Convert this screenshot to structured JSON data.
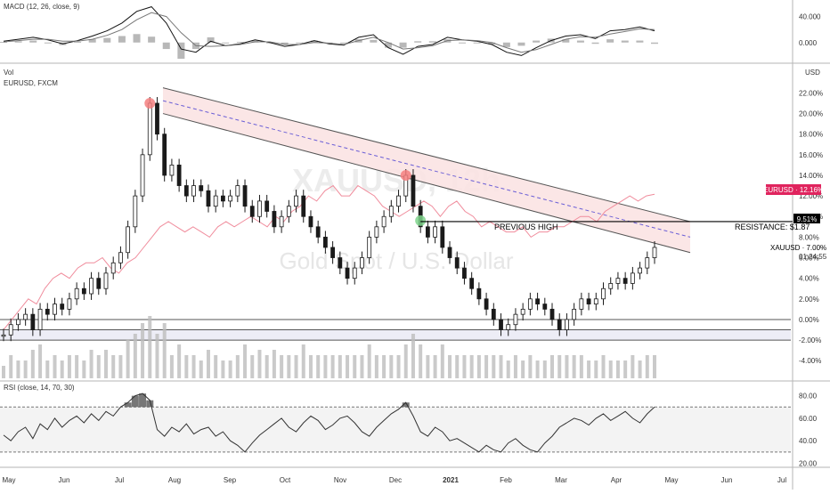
{
  "panes": {
    "macd_label": "MACD (12, 26, close, 9)",
    "vol_label": "Vol",
    "symbol_label": "EURUSD, FXCM",
    "rsi_label": "RSI (close, 14, 70, 30)",
    "currency_label": "USD"
  },
  "watermark": {
    "symbol": "XAUUSD, 12h",
    "name": "Gold Spot / U.S. Dollar"
  },
  "annotations": {
    "previous_high": "PREVIOUS HIGH",
    "resistance": "RESISTANCE: $1.87",
    "resistance_pct": "9.51%"
  },
  "badges": {
    "eurusd": "EURUSD · 12.16%",
    "xauusd": "XAUUSD · 7.00%",
    "countdown": "01:24:55"
  },
  "colors": {
    "gold_candles": "#1a1a1a",
    "eurusd_line": "#f08c9c",
    "channel_fill": "#fbe3e3",
    "channel_border": "#555555",
    "channel_mid": "#6b5fd6",
    "eurusd_badge": "#e0245e",
    "highlight_red": "#f57f7f",
    "highlight_green": "#7fd38c",
    "resistance_line": "#000000"
  },
  "time_axis": [
    "May",
    "Jun",
    "Jul",
    "Aug",
    "Sep",
    "Oct",
    "Nov",
    "Dec",
    "2021",
    "Feb",
    "Mar",
    "Apr",
    "May",
    "Jun",
    "Jul"
  ],
  "chart_data": [
    {
      "type": "line",
      "title": "MACD (12, 26, close, 9)",
      "y_ticks": [
        "40.000",
        "0.000"
      ],
      "ylim": [
        -25,
        60
      ],
      "series": [
        {
          "name": "MACD",
          "values": [
            2,
            5,
            8,
            4,
            -2,
            3,
            10,
            18,
            30,
            48,
            55,
            30,
            -10,
            -15,
            2,
            -5,
            -2,
            4,
            0,
            -6,
            -3,
            3,
            -2,
            -4,
            8,
            12,
            -8,
            -18,
            -6,
            -3,
            8,
            4,
            2,
            -3,
            -15,
            -20,
            -8,
            3,
            10,
            12,
            6,
            18,
            20,
            24,
            18
          ]
        },
        {
          "name": "Signal",
          "values": [
            1,
            3,
            5,
            5,
            2,
            2,
            5,
            11,
            20,
            35,
            46,
            40,
            15,
            -5,
            -6,
            -5,
            -3,
            1,
            1,
            -3,
            -3,
            0,
            -1,
            -3,
            3,
            8,
            0,
            -10,
            -8,
            -5,
            3,
            4,
            3,
            0,
            -8,
            -15,
            -11,
            -3,
            5,
            9,
            8,
            13,
            17,
            21,
            20
          ]
        }
      ],
      "histogram": [
        1,
        2,
        3,
        -1,
        -4,
        1,
        5,
        7,
        10,
        13,
        9,
        -10,
        -25,
        -10,
        8,
        0,
        1,
        3,
        -1,
        -3,
        0,
        3,
        -1,
        -1,
        5,
        4,
        -8,
        -8,
        2,
        2,
        5,
        0,
        -1,
        -3,
        -7,
        -5,
        3,
        6,
        5,
        3,
        -2,
        5,
        3,
        3,
        -2
      ]
    },
    {
      "type": "candlestick",
      "title": "Gold Spot / U.S. Dollar",
      "y_ticks": [
        "22.00%",
        "20.00%",
        "18.00%",
        "16.00%",
        "14.00%",
        "12.00%",
        "10.00%",
        "8.00%",
        "6.00%",
        "4.00%",
        "2.00%",
        "0.00%",
        "-2.00%",
        "-4.00%"
      ],
      "ylim": [
        -4.5,
        22.9
      ],
      "series": [
        {
          "name": "XAUUSD",
          "values": [
            -1.5,
            -0.5,
            0,
            0.5,
            -1,
            1,
            0.5,
            1.5,
            1,
            2,
            3,
            2.5,
            4,
            3,
            4.5,
            5.5,
            6.5,
            9,
            12,
            16,
            21,
            18,
            14,
            15,
            13,
            12,
            13,
            12.5,
            11,
            12,
            11.5,
            12,
            13,
            11,
            10,
            11.5,
            10.5,
            9,
            10,
            11,
            12,
            10,
            9,
            8,
            7,
            6,
            5,
            4,
            5,
            6,
            8,
            9,
            10,
            11,
            12,
            14,
            11,
            9,
            8,
            9,
            7,
            6,
            5,
            4,
            3,
            2,
            1,
            0,
            -1,
            -0.5,
            0.5,
            1,
            2,
            1.5,
            1,
            0,
            -1,
            0,
            1,
            2,
            1.5,
            2,
            3,
            3.5,
            4,
            3.5,
            4.5,
            5,
            6,
            7
          ]
        },
        {
          "name": "EURUSD",
          "values": [
            -1,
            0,
            1,
            2,
            1.5,
            3,
            4,
            4.5,
            4,
            5,
            5.5,
            5.5,
            6,
            5,
            4.5,
            5.5,
            6,
            7,
            8,
            9,
            9.5,
            9,
            8.5,
            9,
            8.5,
            8,
            9,
            9.5,
            9,
            9.5,
            10,
            9.5,
            9,
            10,
            9.5,
            10.5,
            11,
            12,
            11.5,
            12.5,
            13,
            12,
            12,
            13,
            12.5,
            12,
            11,
            10.5,
            10,
            10.5,
            11,
            11.5,
            11,
            10,
            11,
            11.5,
            10.5,
            10,
            9,
            9.5,
            9,
            8.5,
            8.5,
            9,
            8,
            8.5,
            8.5,
            9,
            9,
            9.5,
            10,
            10,
            9.5,
            10.5,
            11,
            11.5,
            12,
            11.5,
            12,
            12.16
          ]
        }
      ],
      "channel": {
        "upper_start": 22.5,
        "upper_end": 9.5,
        "lower_start": 20,
        "lower_end": 6.5
      },
      "resistance": 9.51,
      "annotations": [
        "PREVIOUS HIGH",
        "RESISTANCE: $1.87"
      ]
    },
    {
      "type": "line",
      "title": "RSI (close, 14, 70, 30)",
      "y_ticks": [
        "80.00",
        "60.00",
        "40.00",
        "20.00"
      ],
      "ylim": [
        18,
        90
      ],
      "levels": [
        70,
        30
      ],
      "series": [
        {
          "name": "RSI",
          "values": [
            45,
            40,
            48,
            52,
            42,
            55,
            50,
            60,
            52,
            58,
            62,
            56,
            64,
            58,
            66,
            62,
            70,
            74,
            80,
            82,
            76,
            50,
            44,
            52,
            48,
            55,
            46,
            50,
            52,
            44,
            48,
            40,
            36,
            30,
            38,
            45,
            50,
            55,
            60,
            52,
            48,
            56,
            62,
            58,
            50,
            54,
            60,
            62,
            56,
            48,
            44,
            52,
            58,
            64,
            68,
            74,
            62,
            48,
            44,
            52,
            48,
            40,
            42,
            38,
            34,
            30,
            36,
            32,
            30,
            38,
            42,
            36,
            32,
            30,
            38,
            44,
            52,
            56,
            60,
            58,
            54,
            60,
            64,
            58,
            62,
            66,
            60,
            56,
            64,
            70
          ]
        }
      ]
    }
  ]
}
